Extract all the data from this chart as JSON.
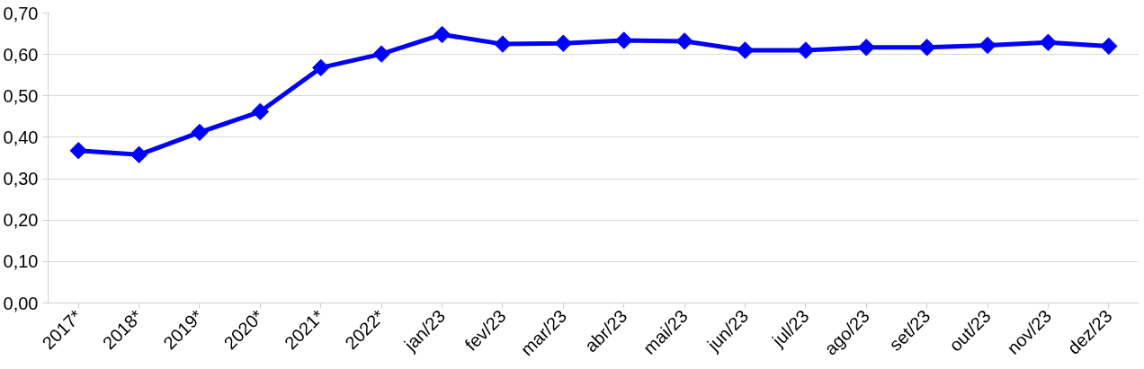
{
  "chart_data": {
    "type": "line",
    "categories": [
      "2017*",
      "2018*",
      "2019*",
      "2020*",
      "2021*",
      "2022*",
      "jan/23",
      "fev/23",
      "mar/23",
      "abr/23",
      "mai/23",
      "jun/23",
      "jul/23",
      "ago/23",
      "set/23",
      "out/23",
      "nov/23",
      "dez/23"
    ],
    "series": [
      {
        "color": "#0000ff",
        "values": [
          0.368,
          0.358,
          0.412,
          0.462,
          0.568,
          0.601,
          0.648,
          0.625,
          0.627,
          0.634,
          0.632,
          0.61,
          0.61,
          0.617,
          0.617,
          0.622,
          0.629,
          0.62
        ]
      }
    ],
    "ylim": [
      0,
      0.7
    ],
    "yticks": [
      {
        "value": 0,
        "label": "0,00"
      },
      {
        "value": 0.1,
        "label": "0,10"
      },
      {
        "value": 0.2,
        "label": "0,20"
      },
      {
        "value": 0.3,
        "label": "0,30"
      },
      {
        "value": 0.4,
        "label": "0,40"
      },
      {
        "value": 0.5,
        "label": "0,50"
      },
      {
        "value": 0.6,
        "label": "0,60"
      },
      {
        "value": 0.7,
        "label": "0,70"
      }
    ],
    "grid": "y",
    "marker": "diamond",
    "line_style": "solid"
  }
}
